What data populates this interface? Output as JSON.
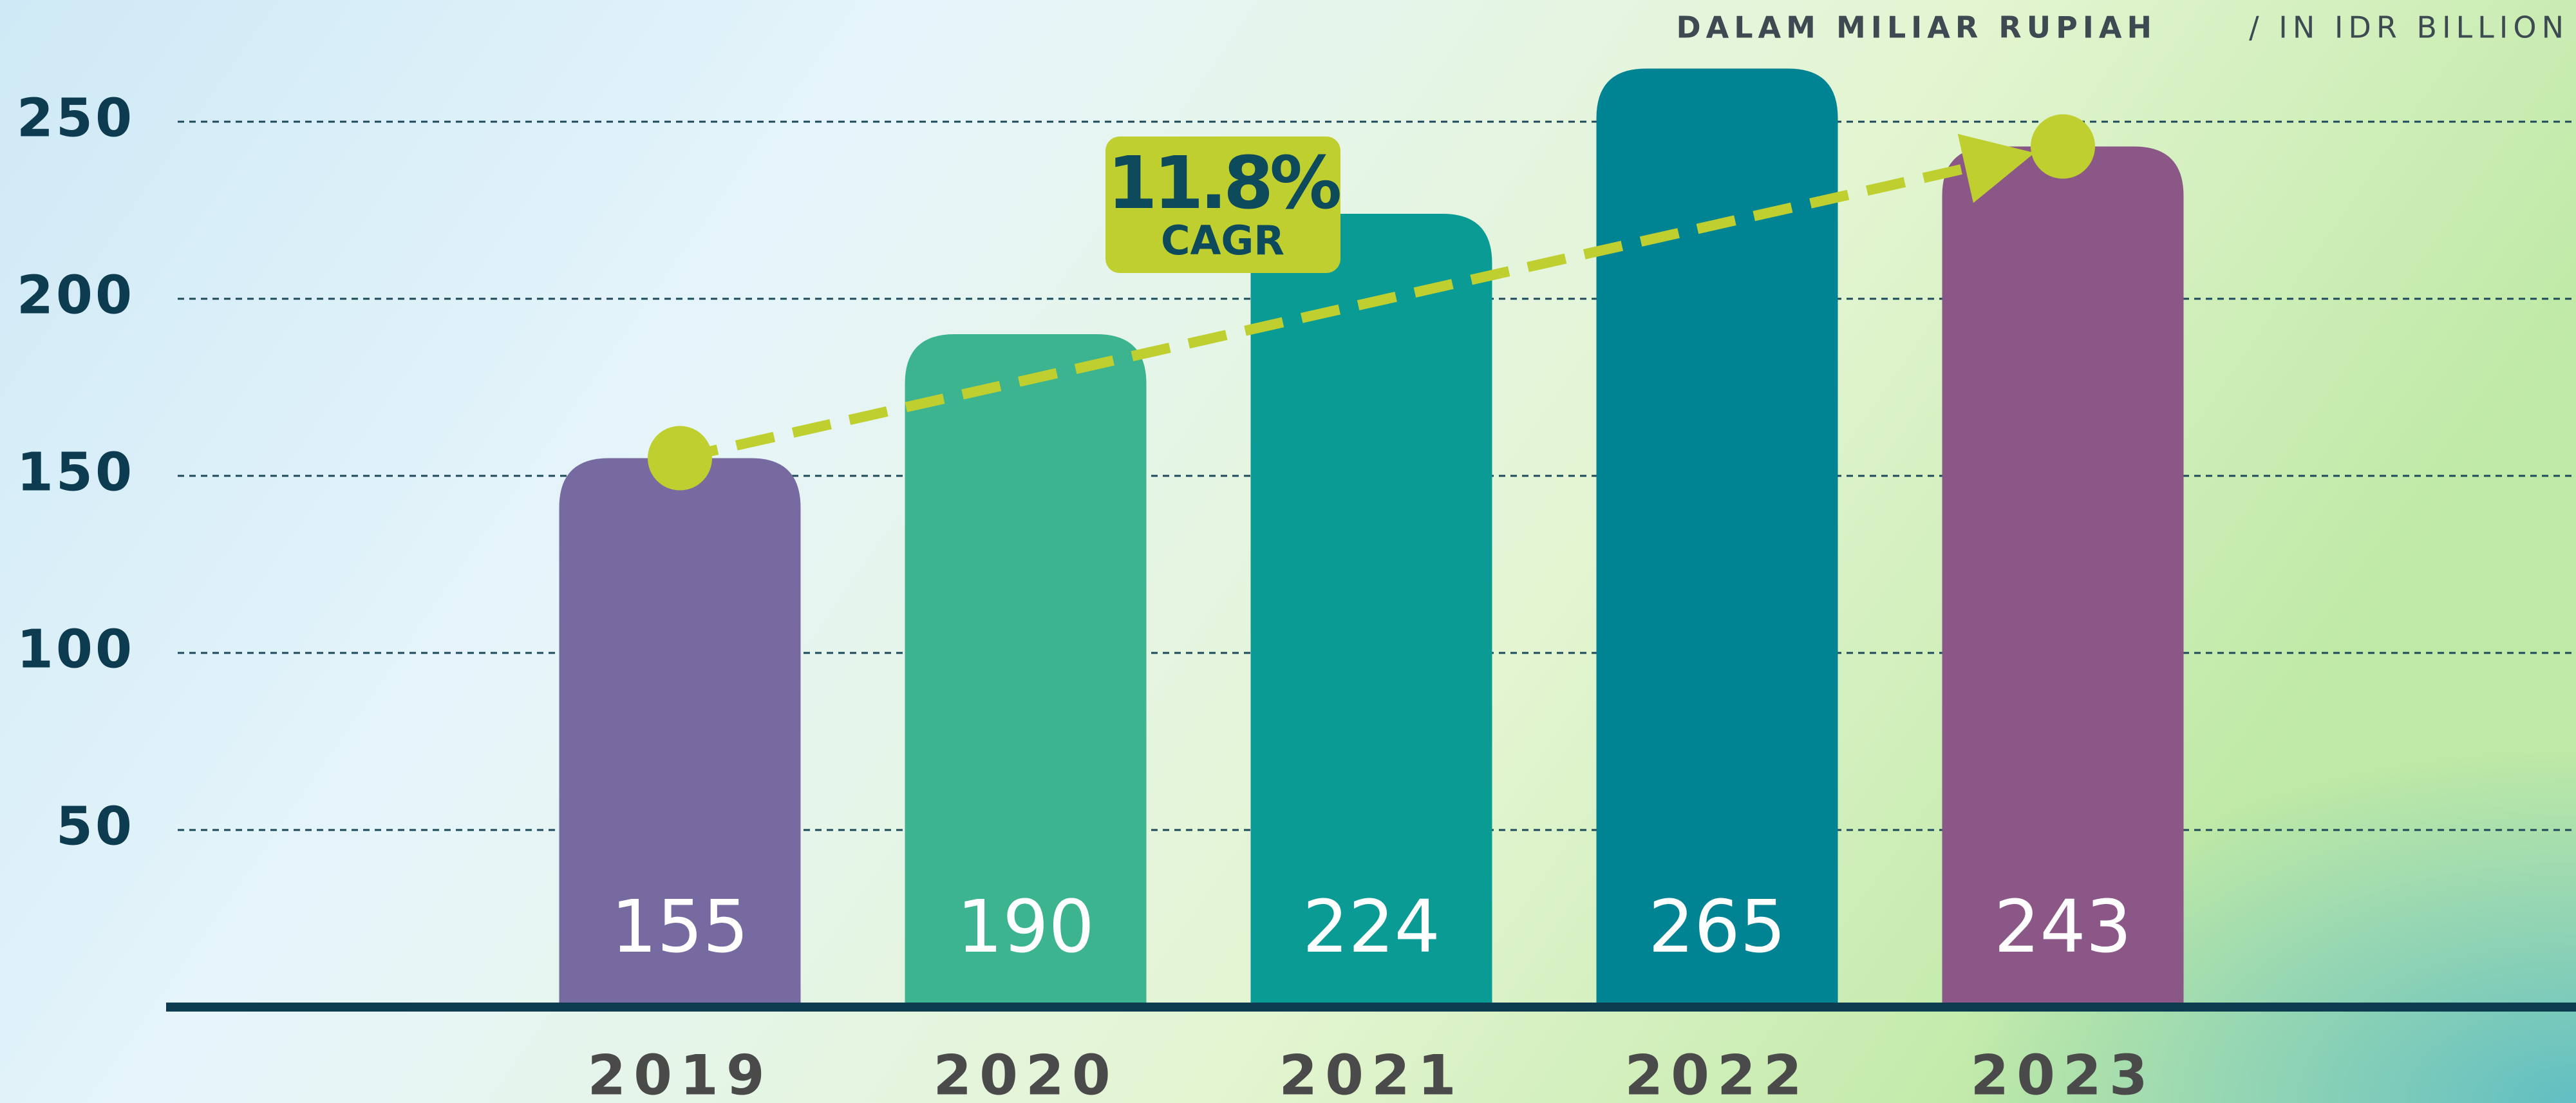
{
  "chart_data": {
    "type": "bar",
    "unit_label": "DALAM MILIAR RUPIAH",
    "unit_label_en": "/ IN IDR BILLION",
    "categories": [
      "2019",
      "2020",
      "2021",
      "2022",
      "2023"
    ],
    "values": [
      155,
      190,
      224,
      265,
      243
    ],
    "colors": [
      "#766aa0",
      "#3bb48f",
      "#0a9b95",
      "#008393",
      "#8b5787"
    ],
    "ylim": [
      0,
      250
    ],
    "yticks": [
      50,
      100,
      150,
      200,
      250
    ],
    "grid": true,
    "annotation": {
      "value": 11.8,
      "value_label": "11.8%",
      "label": "CAGR",
      "color": "#bfcf2f"
    }
  }
}
